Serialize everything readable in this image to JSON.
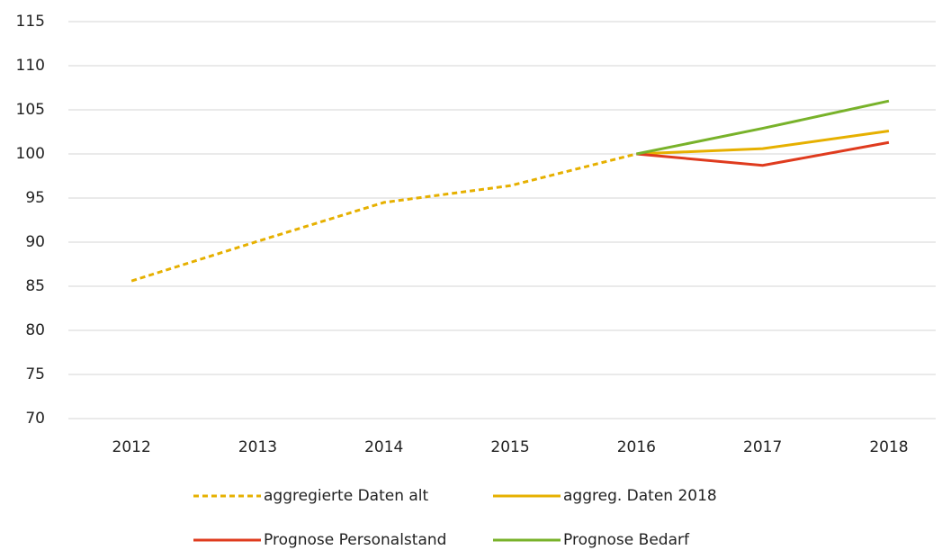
{
  "chart_data": {
    "type": "line",
    "categories": [
      "2012",
      "2013",
      "2014",
      "2015",
      "2016",
      "2017",
      "2018"
    ],
    "series": [
      {
        "name": "aggregierte Daten alt",
        "color": "#e6b000",
        "dashed": true,
        "values": [
          85.6,
          90.1,
          94.5,
          96.4,
          100,
          null,
          null
        ]
      },
      {
        "name": "aggreg. Daten 2018",
        "color": "#e6b000",
        "dashed": false,
        "values": [
          null,
          null,
          null,
          null,
          100,
          100.6,
          102.6
        ]
      },
      {
        "name": "Prognose Personalstand",
        "color": "#df3b1e",
        "dashed": false,
        "values": [
          null,
          null,
          null,
          null,
          100,
          98.7,
          101.3
        ]
      },
      {
        "name": "Prognose Bedarf",
        "color": "#78b22a",
        "dashed": false,
        "values": [
          null,
          null,
          null,
          null,
          100,
          102.9,
          106.0
        ]
      }
    ],
    "ylim": [
      70,
      115
    ],
    "yticks": [
      70,
      75,
      80,
      85,
      90,
      95,
      100,
      105,
      110,
      115
    ],
    "grid": true,
    "legend": "bottom"
  }
}
